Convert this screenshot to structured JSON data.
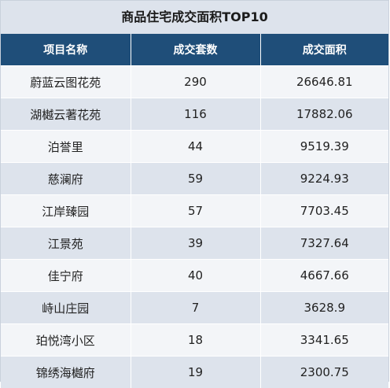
{
  "table": {
    "title": "商品住宅成交面积TOP10",
    "headers": [
      "项目名称",
      "成交套数",
      "成交面积"
    ],
    "rows": [
      [
        "蔚蓝云图花苑",
        "290",
        "26646.81"
      ],
      [
        "湖樾云著花苑",
        "116",
        "17882.06"
      ],
      [
        "泊誉里",
        "44",
        "9519.39"
      ],
      [
        "慈澜府",
        "59",
        "9224.93"
      ],
      [
        "江岸臻园",
        "57",
        "7703.45"
      ],
      [
        "江景苑",
        "39",
        "7327.64"
      ],
      [
        "佳宁府",
        "40",
        "4667.66"
      ],
      [
        "峙山庄园",
        "7",
        "3628.9"
      ],
      [
        "珀悦湾小区",
        "18",
        "3341.65"
      ],
      [
        "锦绣海樾府",
        "19",
        "2300.75"
      ]
    ]
  },
  "colors": {
    "header_bg": "#1f4e79",
    "title_bg": "#dde3ec",
    "row_light": "#f3f5f8",
    "row_dark": "#dde3ec"
  }
}
